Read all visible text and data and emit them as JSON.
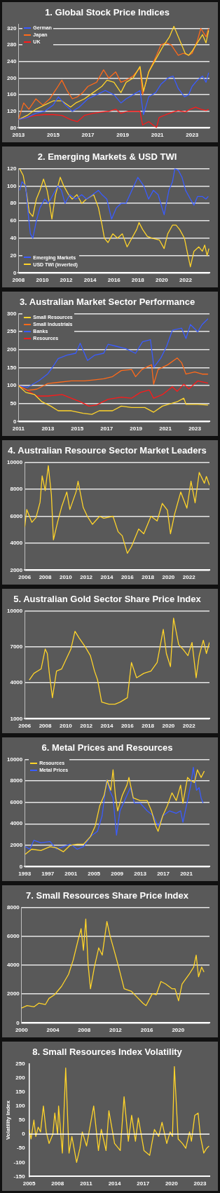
{
  "chart_data": [
    {
      "type": "line",
      "title": "1. Global Stock Price Indices",
      "xlim": [
        2013,
        2024
      ],
      "xticks": [
        2013,
        2015,
        2017,
        2019,
        2021,
        2023
      ],
      "ylim": [
        80,
        330
      ],
      "yticks": [
        80,
        120,
        160,
        200,
        240,
        280,
        320
      ],
      "grid": "y",
      "legend": "top left",
      "series": [
        {
          "name": "German",
          "color": "#3a5cff",
          "x": [
            2013,
            2013.5,
            2014,
            2014.5,
            2015,
            2015.3,
            2015.7,
            2016.1,
            2016.5,
            2017,
            2017.5,
            2018,
            2018.5,
            2018.9,
            2019.2,
            2019.6,
            2020,
            2020.2,
            2020.5,
            2020.9,
            2021.2,
            2021.6,
            2021.9,
            2022.2,
            2022.56,
            2022.8,
            2023,
            2023.3,
            2023.6,
            2023.8,
            2023.95
          ],
          "values": [
            100,
            105,
            115,
            120,
            135,
            155,
            135,
            120,
            130,
            150,
            160,
            170,
            160,
            140,
            150,
            160,
            170,
            112,
            155,
            165,
            185,
            200,
            205,
            175,
            155,
            160,
            180,
            195,
            205,
            190,
            213
          ]
        },
        {
          "name": null,
          "color": "#ffd42a",
          "x": [
            2013,
            2013.5,
            2014,
            2014.5,
            2015,
            2015.5,
            2016,
            2016.3,
            2016.8,
            2017.3,
            2017.8,
            2018.1,
            2018.5,
            2018.9,
            2019.2,
            2019.6,
            2020,
            2020.2,
            2020.5,
            2020.9,
            2021.3,
            2021.7,
            2021.95,
            2022.3,
            2022.6,
            2022.8,
            2023,
            2023.3,
            2023.6,
            2023.8,
            2023.95
          ],
          "values": [
            100,
            110,
            125,
            135,
            145,
            145,
            130,
            140,
            150,
            165,
            180,
            195,
            190,
            165,
            190,
            200,
            228,
            168,
            215,
            245,
            275,
            300,
            325,
            290,
            260,
            255,
            265,
            285,
            305,
            285,
            315
          ]
        },
        {
          "name": "Japan",
          "color": "#ff6a1a",
          "x": [
            2013,
            2013.3,
            2013.6,
            2014,
            2014.4,
            2014.8,
            2015.2,
            2015.5,
            2015.8,
            2016.1,
            2016.4,
            2016.7,
            2017,
            2017.5,
            2017.9,
            2018.2,
            2018.6,
            2018.9,
            2019.2,
            2019.6,
            2020,
            2020.15,
            2020.5,
            2020.9,
            2021.2,
            2021.5,
            2021.8,
            2022.2,
            2022.5,
            2022.8,
            2023,
            2023.3,
            2023.5,
            2023.8,
            2023.95
          ],
          "values": [
            100,
            140,
            125,
            150,
            135,
            150,
            175,
            195,
            170,
            150,
            155,
            165,
            180,
            190,
            220,
            200,
            215,
            190,
            195,
            205,
            225,
            160,
            215,
            250,
            280,
            285,
            280,
            255,
            260,
            255,
            260,
            290,
            320,
            300,
            320
          ]
        },
        {
          "name": "UK",
          "color": "#ff1a1a",
          "x": [
            2013,
            2013.5,
            2014,
            2014.5,
            2015,
            2015.5,
            2016,
            2016.4,
            2016.8,
            2017.3,
            2017.8,
            2018.2,
            2018.6,
            2018.9,
            2019.3,
            2019.7,
            2020,
            2020.15,
            2020.5,
            2020.8,
            2020.95,
            2021.1,
            2021.5,
            2021.9,
            2022.2,
            2022.6,
            2022.9,
            2023.2,
            2023.5,
            2023.8,
            2023.95
          ],
          "values": [
            100,
            105,
            110,
            112,
            112,
            110,
            100,
            95,
            110,
            115,
            118,
            120,
            125,
            115,
            120,
            120,
            120,
            87,
            95,
            85,
            81,
            105,
            112,
            118,
            122,
            118,
            125,
            130,
            125,
            122,
            125
          ]
        }
      ]
    },
    {
      "type": "line",
      "title": "2. Emerging Markets & USD TWI",
      "xlim": [
        2008,
        2024
      ],
      "xticks": [
        2008,
        2010,
        2012,
        2014,
        2016,
        2018,
        2020,
        2022
      ],
      "ylim": [
        0,
        120
      ],
      "yticks": [
        0,
        20,
        40,
        60,
        80,
        100,
        120
      ],
      "grid": "y",
      "legend": "bottom left",
      "series": [
        {
          "name": "Emerging Markets",
          "color": "#3a5cff",
          "x": [
            2008.1,
            2008.3,
            2008.6,
            2008.8,
            2009,
            2009.2,
            2009.5,
            2009.8,
            2010.2,
            2010.5,
            2010.9,
            2011.3,
            2011.6,
            2011.9,
            2012.3,
            2012.8,
            2013.3,
            2013.7,
            2014.2,
            2014.7,
            2015,
            2015.4,
            2015.8,
            2016.2,
            2016.6,
            2017,
            2017.5,
            2018,
            2018.5,
            2018.9,
            2019.3,
            2019.7,
            2020.2,
            2020.6,
            2020.9,
            2021.1,
            2021.4,
            2021.7,
            2022,
            2022.4,
            2022.7,
            2023,
            2023.4,
            2023.7,
            2023.9
          ],
          "values": [
            95,
            105,
            100,
            70,
            45,
            40,
            60,
            75,
            85,
            80,
            90,
            100,
            95,
            80,
            90,
            85,
            90,
            85,
            90,
            95,
            90,
            85,
            62,
            75,
            80,
            80,
            95,
            110,
            100,
            85,
            95,
            90,
            67,
            95,
            105,
            120,
            118,
            110,
            95,
            85,
            78,
            88,
            88,
            85,
            88
          ]
        },
        {
          "name": "USD TWI (inverted)",
          "color": "#ffd42a",
          "x": [
            2008.1,
            2008.4,
            2008.7,
            2008.9,
            2009.2,
            2009.5,
            2009.8,
            2010.1,
            2010.4,
            2010.6,
            2010.8,
            2011.1,
            2011.5,
            2011.8,
            2012.2,
            2012.5,
            2012.9,
            2013.3,
            2013.7,
            2014.3,
            2014.7,
            2015,
            2015.2,
            2015.5,
            2015.9,
            2016.3,
            2016.7,
            2017.1,
            2017.5,
            2017.9,
            2018.1,
            2018.4,
            2018.8,
            2019.2,
            2019.8,
            2020.2,
            2020.5,
            2020.9,
            2021.2,
            2021.5,
            2021.9,
            2022.2,
            2022.4,
            2022.7,
            2023.1,
            2023.4,
            2023.6,
            2023.8,
            2023.95
          ],
          "values": [
            120,
            112,
            90,
            70,
            65,
            85,
            95,
            108,
            95,
            80,
            62,
            90,
            110,
            100,
            90,
            85,
            90,
            80,
            85,
            90,
            75,
            55,
            40,
            35,
            45,
            40,
            45,
            30,
            40,
            50,
            58,
            50,
            42,
            40,
            38,
            28,
            45,
            55,
            55,
            50,
            40,
            20,
            7,
            25,
            30,
            25,
            32,
            20,
            28
          ]
        }
      ]
    },
    {
      "type": "line",
      "title": "3. Australian Market Sector Performance",
      "xlim": [
        2011,
        2024
      ],
      "xticks": [
        2011,
        2013,
        2015,
        2017,
        2019,
        2021,
        2023
      ],
      "ylim": [
        0,
        300
      ],
      "yticks": [
        0,
        50,
        100,
        150,
        200,
        250,
        300
      ],
      "grid": "y",
      "legend": "top left",
      "series": [
        {
          "name": "Small Resources",
          "color": "#ffd42a",
          "x": [
            2011,
            2011.5,
            2012.1,
            2012.6,
            2013.2,
            2013.7,
            2014.6,
            2015.4,
            2016,
            2016.5,
            2017.4,
            2018,
            2018.7,
            2019.6,
            2020.2,
            2020.8,
            2021.8,
            2022.25,
            2022.4,
            2023.2,
            2023.9
          ],
          "values": [
            100,
            81,
            75,
            55,
            43,
            30,
            30,
            23,
            20,
            30,
            30,
            43,
            39,
            39,
            26,
            43,
            55,
            65,
            48,
            48,
            46
          ]
        },
        {
          "name": "Small Industrials",
          "color": "#ff6a1a",
          "x": [
            2011,
            2011.6,
            2012.25,
            2013,
            2013.7,
            2014.6,
            2015.5,
            2016.2,
            2016.8,
            2017.4,
            2018,
            2018.7,
            2018.97,
            2019.4,
            2020.06,
            2020.2,
            2020.5,
            2021.16,
            2021.8,
            2022.1,
            2022.4,
            2023,
            2023.5,
            2023.9
          ],
          "values": [
            100,
            87,
            90,
            106,
            109,
            113,
            113,
            116,
            119,
            125,
            142,
            145,
            125,
            145,
            158,
            104,
            145,
            158,
            177,
            164,
            132,
            138,
            132,
            132
          ]
        },
        {
          "name": "Banks",
          "color": "#3a5cff",
          "x": [
            2011,
            2011.6,
            2012.4,
            2013,
            2013.3,
            2013.7,
            2014.3,
            2014.9,
            2015.2,
            2015.7,
            2016.2,
            2016.8,
            2017.1,
            2017.7,
            2018.3,
            2018.97,
            2019.44,
            2019.98,
            2020.22,
            2020.69,
            2021.08,
            2021.47,
            2022.1,
            2022.4,
            2022.7,
            2023.2,
            2023.5,
            2023.9
          ],
          "values": [
            100,
            95,
            114,
            133,
            150,
            175,
            185,
            190,
            218,
            170,
            185,
            190,
            215,
            209,
            203,
            190,
            222,
            228,
            151,
            177,
            209,
            254,
            260,
            231,
            270,
            250,
            270,
            286
          ]
        },
        {
          "name": "Resources",
          "color": "#ff1a1a",
          "x": [
            2011,
            2011.6,
            2012.25,
            2013,
            2013.97,
            2014.6,
            2015.2,
            2015.8,
            2016.3,
            2017.1,
            2018,
            2018.7,
            2019.3,
            2019.9,
            2020.2,
            2020.8,
            2021.47,
            2021.8,
            2022.25,
            2022.6,
            2023.2,
            2023.9
          ],
          "values": [
            100,
            87,
            71,
            71,
            75,
            65,
            55,
            43,
            46,
            62,
            68,
            65,
            81,
            88,
            65,
            75,
            97,
            84,
            104,
            91,
            113,
            107
          ]
        }
      ]
    },
    {
      "type": "line",
      "title": "4. Australian Resource Sector Market Leaders",
      "xlim": [
        2006,
        2024
      ],
      "xticks": [
        2006,
        2008,
        2010,
        2012,
        2014,
        2016,
        2018,
        2020,
        2022
      ],
      "ylim": [
        2000,
        10000
      ],
      "yticks": [
        2000,
        4000,
        6000,
        8000,
        10000
      ],
      "grid": "y",
      "series": [
        {
          "color": "#ffd42a",
          "x": [
            2006,
            2006.2,
            2006.7,
            2007.1,
            2007.5,
            2007.7,
            2008,
            2008.3,
            2008.6,
            2008.8,
            2009.2,
            2009.6,
            2010.1,
            2010.4,
            2011,
            2011.2,
            2011.7,
            2012.1,
            2012.6,
            2013.3,
            2013.7,
            2014.6,
            2015.1,
            2015.5,
            2016,
            2016.4,
            2017.1,
            2017.6,
            2018.3,
            2018.9,
            2019.4,
            2019.9,
            2020.2,
            2020.6,
            2021.2,
            2021.8,
            2022.2,
            2022.6,
            2023,
            2023.5,
            2023.7,
            2024
          ],
          "values": [
            5200,
            6500,
            5550,
            5900,
            7050,
            9000,
            7900,
            9750,
            7600,
            4250,
            5550,
            6700,
            7800,
            6500,
            7800,
            8600,
            6650,
            6000,
            5400,
            6000,
            5850,
            6000,
            4850,
            4550,
            3250,
            3750,
            5050,
            4700,
            6000,
            5650,
            6950,
            6450,
            4700,
            6150,
            7800,
            6600,
            8600,
            7000,
            9250,
            8450,
            8950,
            8300
          ]
        }
      ]
    },
    {
      "type": "line",
      "title": "5. Australian Gold Sector Share Price Index",
      "xlim": [
        2006,
        2024
      ],
      "xticks": [
        2006,
        2008,
        2010,
        2012,
        2014,
        2016,
        2018,
        2020,
        2022
      ],
      "ylim": [
        1000,
        10000
      ],
      "yticks": [
        1000,
        4000,
        7000,
        10000
      ],
      "grid": "y",
      "series": [
        {
          "color": "#ffd42a",
          "x": [
            2006.45,
            2006.9,
            2007.6,
            2008,
            2008.2,
            2008.4,
            2008.7,
            2009.1,
            2009.6,
            2010.1,
            2010.5,
            2010.9,
            2011.3,
            2011.9,
            2012.4,
            2012.8,
            2013.1,
            2013.5,
            2014.2,
            2014.8,
            2015.3,
            2016,
            2016.4,
            2016.9,
            2017.6,
            2018.3,
            2018.9,
            2019.5,
            2019.8,
            2020.2,
            2020.5,
            2021,
            2021.4,
            2021.9,
            2022.3,
            2022.7,
            2023,
            2023.4,
            2023.7,
            2024
          ],
          "values": [
            4240,
            4790,
            5160,
            6820,
            6450,
            4790,
            2760,
            4980,
            5160,
            6080,
            6820,
            8300,
            7750,
            7000,
            6270,
            4980,
            4240,
            2390,
            2210,
            2210,
            2390,
            2760,
            5700,
            4420,
            4790,
            4980,
            5700,
            8460,
            6450,
            5350,
            9400,
            7190,
            6820,
            6270,
            7370,
            4420,
            6270,
            7560,
            6450,
            7370
          ]
        }
      ]
    },
    {
      "type": "line",
      "title": "6. Metal Prices and Resources",
      "xlim": [
        1993,
        2025
      ],
      "xticks": [
        1993,
        1997,
        2001,
        2005,
        2009,
        2013,
        2017,
        2021
      ],
      "ylim": [
        0,
        10000
      ],
      "yticks": [
        0,
        2000,
        4000,
        6000,
        8000,
        10000
      ],
      "grid": "y",
      "legend": "top left",
      "series": [
        {
          "name": "Resources",
          "color": "#ffd42a",
          "x": [
            1993.1,
            1994.2,
            1995.8,
            1997.4,
            1998.5,
            1999.7,
            2000.9,
            2002.1,
            2003.2,
            2004.4,
            2005.2,
            2006,
            2006.75,
            2007.3,
            2007.9,
            2008.3,
            2008.7,
            2009.1,
            2009.9,
            2010.7,
            2011.05,
            2011.8,
            2013,
            2014.2,
            2014.95,
            2015.7,
            2016.1,
            2016.9,
            2017.7,
            2018.5,
            2019.25,
            2020,
            2020.4,
            2021.2,
            2021.6,
            2022.4,
            2022.9,
            2023.55,
            2024.1
          ],
          "values": [
            1150,
            1630,
            1510,
            1870,
            1750,
            1390,
            2000,
            2100,
            2100,
            2820,
            3780,
            5690,
            6650,
            8080,
            7130,
            9040,
            6650,
            5210,
            6650,
            7610,
            8330,
            6410,
            6170,
            6170,
            5210,
            3780,
            3300,
            4740,
            5690,
            6890,
            6170,
            7610,
            5930,
            8330,
            8090,
            7850,
            9040,
            8330,
            8920
          ]
        },
        {
          "name": "Metal Prices",
          "color": "#3a5cff",
          "x": [
            1993.1,
            1993.9,
            1994.6,
            1995.8,
            1997.4,
            1998.5,
            1999.7,
            2000.9,
            2002.1,
            2003.2,
            2004.4,
            2005.6,
            2006.4,
            2007.2,
            2007.7,
            2008.3,
            2008.9,
            2009.5,
            2010.3,
            2011.3,
            2012,
            2013,
            2014.2,
            2015.3,
            2016.1,
            2016.9,
            2018.1,
            2019.25,
            2020,
            2020.4,
            2021.2,
            2021.75,
            2022.2,
            2022.75,
            2023.2,
            2023.55,
            2023.9
          ],
          "values": [
            1870,
            1630,
            2460,
            2220,
            2340,
            1630,
            1870,
            2100,
            1630,
            1870,
            2820,
            3300,
            4740,
            8080,
            7130,
            6410,
            2940,
            5210,
            6170,
            7370,
            5930,
            5930,
            5210,
            4740,
            3780,
            4740,
            5210,
            4980,
            5210,
            4140,
            6170,
            7610,
            9280,
            7130,
            7370,
            6410,
            5930
          ]
        }
      ]
    },
    {
      "type": "line",
      "title": "7. Small Resources Share Price Index",
      "xlim": [
        2000,
        2024
      ],
      "xticks": [
        2000,
        2004,
        2008,
        2012,
        2016,
        2020
      ],
      "ylim": [
        0,
        8000
      ],
      "yticks": [
        0,
        2000,
        4000,
        6000,
        8000
      ],
      "grid": "y",
      "series": [
        {
          "color": "#ffd42a",
          "x": [
            2000,
            2000.7,
            2001.6,
            2002.2,
            2003.05,
            2003.5,
            2004.2,
            2005.1,
            2006,
            2006.6,
            2007.2,
            2007.6,
            2007.9,
            2008.2,
            2008.5,
            2008.8,
            2009.3,
            2009.85,
            2010.3,
            2010.9,
            2011.3,
            2011.9,
            2012.4,
            2013.1,
            2014,
            2014.6,
            2015.5,
            2015.9,
            2016.7,
            2017.2,
            2017.8,
            2018.4,
            2019.2,
            2019.6,
            2020.05,
            2020.5,
            2021.4,
            2021.98,
            2022.3,
            2022.6,
            2023,
            2023.3
          ],
          "values": [
            1030,
            1200,
            1120,
            1370,
            1280,
            1700,
            1950,
            2530,
            3370,
            4370,
            5700,
            6530,
            5030,
            7200,
            4030,
            2370,
            3870,
            5200,
            4700,
            7030,
            6030,
            4870,
            3870,
            2370,
            2200,
            1870,
            1370,
            1200,
            2030,
            1950,
            2870,
            2700,
            2370,
            2370,
            1530,
            2700,
            3370,
            3870,
            4700,
            3200,
            3870,
            3530
          ]
        }
      ]
    },
    {
      "type": "line",
      "title": "8. Small Resources Index Volatility",
      "ylabel": "Volatility Index",
      "xlim": [
        2005,
        2024
      ],
      "xticks": [
        2005,
        2008,
        2011,
        2014,
        2017,
        2020,
        2023
      ],
      "ylim": [
        -150,
        250
      ],
      "yticks": [
        -150,
        -100,
        -50,
        0,
        50,
        100,
        150,
        200,
        250
      ],
      "grid": false,
      "ref_lines": [
        {
          "axis": "y",
          "value": 0,
          "color": "#ffffff"
        }
      ],
      "series": [
        {
          "color": "#ffd42a",
          "x": [
            2005,
            2005.2,
            2005.5,
            2005.7,
            2005.95,
            2006.2,
            2006.5,
            2006.8,
            2007.1,
            2007.5,
            2007.7,
            2008,
            2008.1,
            2008.5,
            2008.85,
            2009.2,
            2009.5,
            2010,
            2010.35,
            2010.6,
            2011.05,
            2011.8,
            2012.3,
            2012.6,
            2013.1,
            2013.4,
            2014,
            2014.6,
            2015,
            2015.45,
            2015.8,
            2016.2,
            2016.5,
            2017.1,
            2017.7,
            2018.2,
            2018.65,
            2019,
            2019.5,
            2019.85,
            2020.1,
            2020.3,
            2020.7,
            2021.15,
            2021.5,
            2021.9,
            2022.1,
            2022.45,
            2022.8,
            2023.05,
            2023.4,
            2023.7,
            2023.95
          ],
          "values": [
            17,
            -17,
            50,
            -8,
            25,
            8,
            100,
            8,
            -33,
            0,
            75,
            0,
            100,
            -67,
            235,
            -67,
            -8,
            -100,
            -50,
            8,
            -42,
            100,
            -58,
            17,
            -58,
            83,
            -33,
            -58,
            133,
            -25,
            67,
            -25,
            58,
            -58,
            -75,
            17,
            -8,
            42,
            -33,
            8,
            -8,
            240,
            -17,
            -33,
            -50,
            8,
            -25,
            67,
            75,
            -8,
            -67,
            -50,
            -42
          ]
        }
      ]
    }
  ]
}
